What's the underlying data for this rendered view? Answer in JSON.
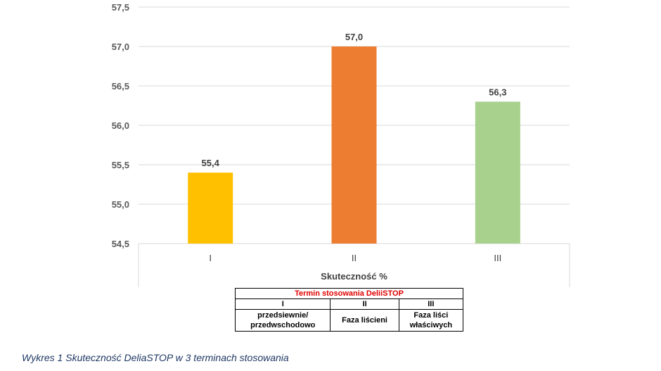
{
  "chart_data": {
    "type": "bar",
    "categories": [
      "I",
      "II",
      "III"
    ],
    "values": [
      55.4,
      57.0,
      56.3
    ],
    "value_labels": [
      "55,4",
      "57,0",
      "56,3"
    ],
    "colors": [
      "#ffc000",
      "#ed7d31",
      "#a9d18e"
    ],
    "xlabel": "Skuteczność %",
    "ylim": [
      54.5,
      57.5
    ],
    "yticks": [
      57.5,
      57.0,
      56.5,
      56.0,
      55.5,
      55.0,
      54.5
    ],
    "ytick_labels": [
      "57,5",
      "57,0",
      "56,5",
      "56,0",
      "55,5",
      "55,0",
      "54,5"
    ],
    "grid": true
  },
  "legend_table": {
    "header": "Termin stosowania DeliiSTOP",
    "numerals": [
      "I",
      "II",
      "III"
    ],
    "descriptions": [
      [
        "przedsiewnie/",
        "przedwschodowo"
      ],
      [
        "Faza liścieni"
      ],
      [
        "Faza liści",
        "właściwych"
      ]
    ]
  },
  "caption": "Wykres 1 Skuteczność DeliaSTOP w 3 terminach stosowania"
}
